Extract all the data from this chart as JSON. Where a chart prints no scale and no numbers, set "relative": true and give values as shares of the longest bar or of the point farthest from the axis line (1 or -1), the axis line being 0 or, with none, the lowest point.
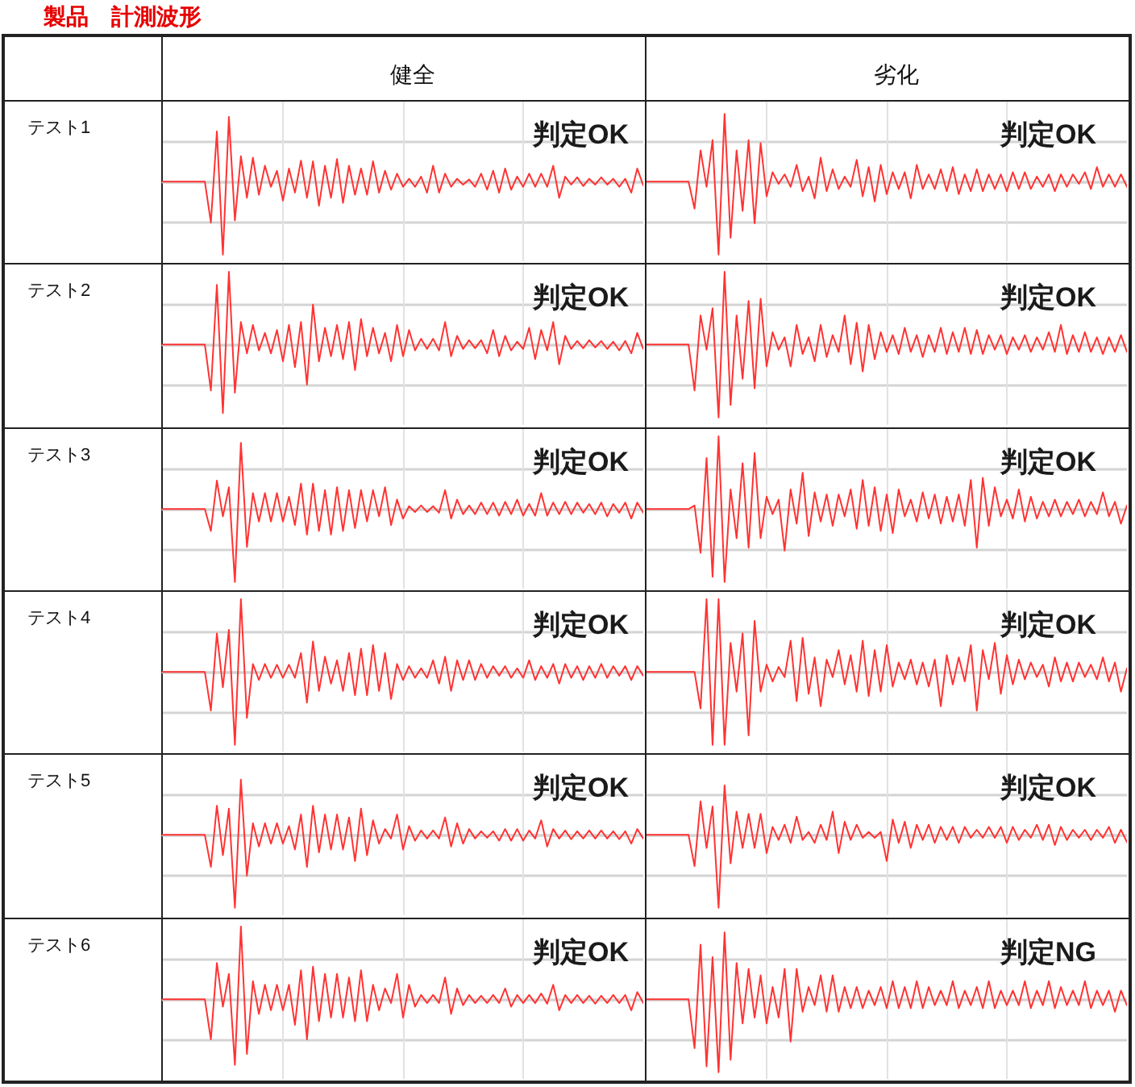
{
  "chart_data": [
    {
      "type": "other",
      "title": "製品　計測波形"
    },
    {
      "type": "line",
      "title": "健全",
      "ylabel": "テスト1",
      "relative": true,
      "grid": true,
      "color": "#ff3333",
      "annotations": [
        "判定OK"
      ],
      "categories": [
        null,
        null,
        null,
        null,
        null,
        null,
        null,
        null,
        null,
        null,
        null,
        null,
        null,
        null,
        null,
        null,
        null,
        null,
        null,
        null,
        null,
        null,
        null,
        null,
        null,
        null,
        null,
        null,
        null,
        null,
        null,
        null,
        null,
        null,
        null,
        null,
        null,
        null,
        null,
        null,
        null,
        null,
        null,
        null,
        null,
        null,
        null,
        null,
        null,
        null,
        null,
        null,
        null,
        null,
        null,
        null,
        null,
        null,
        null,
        null,
        null,
        null,
        null,
        null,
        null,
        null,
        null,
        null,
        null,
        null,
        null,
        null,
        null,
        null,
        null,
        null,
        null,
        null,
        null,
        null,
        null
      ],
      "values": [
        0,
        0,
        0,
        0,
        0,
        0,
        0,
        0,
        -0.56,
        0.69,
        -1,
        0.89,
        -0.53,
        0.35,
        -0.22,
        0.33,
        -0.18,
        0.22,
        -0.07,
        0.15,
        -0.26,
        0.18,
        -0.15,
        0.29,
        -0.22,
        0.28,
        -0.33,
        0.22,
        -0.22,
        0.31,
        -0.29,
        0.22,
        -0.18,
        0.18,
        -0.18,
        0.28,
        -0.15,
        0.15,
        -0.11,
        0.11,
        -0.07,
        0.04,
        -0.07,
        0.07,
        -0.15,
        0.22,
        -0.15,
        0.11,
        -0.07,
        0.04,
        -0.04,
        0.03,
        -0.07,
        0.11,
        -0.11,
        0.15,
        -0.15,
        0.18,
        -0.11,
        0.07,
        -0.07,
        0.11,
        -0.07,
        0.11,
        -0.07,
        0.22,
        -0.22,
        0.07,
        -0.04,
        0.06,
        -0.06,
        0.04,
        -0.04,
        0.06,
        -0.04,
        0.04,
        -0.07,
        0.04,
        -0.15,
        0.18,
        -0.05
      ]
    },
    {
      "type": "line",
      "title": "劣化",
      "relative": true,
      "grid": true,
      "color": "#ff3333",
      "annotations": [
        "判定OK"
      ],
      "categories": [
        null,
        null,
        null,
        null,
        null,
        null,
        null,
        null,
        null,
        null,
        null,
        null,
        null,
        null,
        null,
        null,
        null,
        null,
        null,
        null,
        null,
        null,
        null,
        null,
        null,
        null,
        null,
        null,
        null,
        null,
        null,
        null,
        null,
        null,
        null,
        null,
        null,
        null,
        null,
        null,
        null,
        null,
        null,
        null,
        null,
        null,
        null,
        null,
        null,
        null,
        null,
        null,
        null,
        null,
        null,
        null,
        null,
        null,
        null,
        null,
        null,
        null,
        null,
        null,
        null,
        null,
        null,
        null,
        null,
        null,
        null,
        null,
        null,
        null,
        null,
        null,
        null,
        null,
        null,
        null,
        null
      ],
      "values": [
        0,
        0,
        0,
        0,
        0,
        0,
        0,
        0,
        -0.37,
        0.43,
        -0.07,
        0.57,
        -1,
        0.93,
        -0.77,
        0.43,
        -0.4,
        0.57,
        -0.57,
        0.53,
        -0.2,
        0.13,
        -0.03,
        0.1,
        -0.07,
        0.23,
        -0.13,
        0.07,
        -0.23,
        0.33,
        -0.13,
        0.17,
        -0.1,
        0.07,
        -0.07,
        0.3,
        -0.2,
        0.2,
        -0.27,
        0.23,
        -0.17,
        0.13,
        -0.1,
        0.13,
        -0.23,
        0.23,
        -0.1,
        0.1,
        -0.1,
        0.17,
        -0.13,
        0.2,
        -0.17,
        0.1,
        -0.13,
        0.17,
        -0.13,
        0.1,
        -0.1,
        0.1,
        -0.13,
        0.13,
        -0.1,
        0.13,
        -0.1,
        0.07,
        -0.07,
        0.1,
        -0.13,
        0.1,
        -0.07,
        0.1,
        -0.03,
        0.13,
        -0.1,
        0.2,
        -0.07,
        0.1,
        -0.07,
        0.1,
        -0.07
      ]
    },
    {
      "type": "line",
      "ylabel": "テスト2",
      "relative": true,
      "grid": true,
      "color": "#ff3333",
      "annotations": [
        "判定OK"
      ],
      "categories": [
        null,
        null,
        null,
        null,
        null,
        null,
        null,
        null,
        null,
        null,
        null,
        null,
        null,
        null,
        null,
        null,
        null,
        null,
        null,
        null,
        null,
        null,
        null,
        null,
        null,
        null,
        null,
        null,
        null,
        null,
        null,
        null,
        null,
        null,
        null,
        null,
        null,
        null,
        null,
        null,
        null,
        null,
        null,
        null,
        null,
        null,
        null,
        null,
        null,
        null,
        null,
        null,
        null,
        null,
        null,
        null,
        null,
        null,
        null,
        null,
        null,
        null,
        null,
        null,
        null,
        null,
        null,
        null,
        null,
        null,
        null,
        null,
        null,
        null,
        null,
        null,
        null,
        null,
        null,
        null,
        null
      ],
      "values": [
        0,
        0,
        0,
        0,
        0,
        0,
        0,
        0,
        -0.63,
        0.82,
        -0.94,
        1,
        -0.66,
        0.31,
        -0.12,
        0.27,
        -0.08,
        0.16,
        -0.12,
        0.2,
        -0.23,
        0.27,
        -0.31,
        0.31,
        -0.55,
        0.55,
        -0.23,
        0.23,
        -0.16,
        0.27,
        -0.2,
        0.31,
        -0.35,
        0.35,
        -0.16,
        0.23,
        -0.12,
        0.16,
        -0.23,
        0.27,
        -0.16,
        0.2,
        -0.08,
        0.08,
        -0.06,
        0.08,
        -0.08,
        0.31,
        -0.16,
        0.12,
        -0.06,
        0.06,
        -0.05,
        0.06,
        -0.12,
        0.2,
        -0.16,
        0.12,
        -0.08,
        0.04,
        -0.06,
        0.23,
        -0.2,
        0.2,
        -0.08,
        0.31,
        -0.27,
        0.12,
        -0.06,
        0.05,
        -0.05,
        0.06,
        -0.04,
        0.05,
        -0.06,
        0.04,
        -0.08,
        0.05,
        -0.12,
        0.16,
        -0.06
      ]
    },
    {
      "type": "line",
      "relative": true,
      "grid": true,
      "color": "#ff3333",
      "annotations": [
        "判定OK"
      ],
      "categories": [
        null,
        null,
        null,
        null,
        null,
        null,
        null,
        null,
        null,
        null,
        null,
        null,
        null,
        null,
        null,
        null,
        null,
        null,
        null,
        null,
        null,
        null,
        null,
        null,
        null,
        null,
        null,
        null,
        null,
        null,
        null,
        null,
        null,
        null,
        null,
        null,
        null,
        null,
        null,
        null,
        null,
        null,
        null,
        null,
        null,
        null,
        null,
        null,
        null,
        null,
        null,
        null,
        null,
        null,
        null,
        null,
        null,
        null,
        null,
        null,
        null,
        null,
        null,
        null,
        null,
        null,
        null,
        null,
        null,
        null,
        null,
        null,
        null,
        null,
        null,
        null,
        null,
        null,
        null,
        null,
        null
      ],
      "values": [
        0,
        0,
        0,
        0,
        0,
        0,
        0,
        0,
        -0.63,
        0.4,
        -0.07,
        0.5,
        -1,
        1,
        -0.83,
        0.4,
        -0.47,
        0.6,
        -0.6,
        0.63,
        -0.3,
        0.17,
        -0.07,
        0.1,
        -0.3,
        0.27,
        -0.13,
        0.1,
        -0.23,
        0.27,
        -0.17,
        0.13,
        -0.1,
        0.4,
        -0.27,
        0.3,
        -0.37,
        0.27,
        -0.2,
        0.17,
        -0.1,
        0.13,
        -0.13,
        0.23,
        -0.1,
        0.13,
        -0.17,
        0.13,
        -0.1,
        0.23,
        -0.13,
        0.17,
        -0.1,
        0.23,
        -0.13,
        0.2,
        -0.13,
        0.13,
        -0.07,
        0.13,
        -0.13,
        0.1,
        -0.07,
        0.13,
        -0.1,
        0.1,
        -0.07,
        0.17,
        -0.1,
        0.27,
        -0.13,
        0.13,
        -0.1,
        0.17,
        -0.1,
        0.1,
        -0.13,
        0.1,
        -0.1,
        0.13,
        -0.1
      ]
    },
    {
      "type": "line",
      "ylabel": "テスト3",
      "relative": true,
      "grid": true,
      "color": "#ff3333",
      "annotations": [
        "判定OK"
      ],
      "categories": [
        null,
        null,
        null,
        null,
        null,
        null,
        null,
        null,
        null,
        null,
        null,
        null,
        null,
        null,
        null,
        null,
        null,
        null,
        null,
        null,
        null,
        null,
        null,
        null,
        null,
        null,
        null,
        null,
        null,
        null,
        null,
        null,
        null,
        null,
        null,
        null,
        null,
        null,
        null,
        null,
        null,
        null,
        null,
        null,
        null,
        null,
        null,
        null,
        null,
        null,
        null,
        null,
        null,
        null,
        null,
        null,
        null,
        null,
        null,
        null,
        null,
        null,
        null,
        null,
        null,
        null,
        null,
        null,
        null,
        null,
        null,
        null,
        null,
        null,
        null,
        null,
        null,
        null,
        null,
        null,
        null
      ],
      "values": [
        0,
        0,
        0,
        0,
        0,
        0,
        0,
        0,
        -0.3,
        0.39,
        -0.1,
        0.3,
        -1,
        0.91,
        -0.52,
        0.22,
        -0.17,
        0.22,
        -0.17,
        0.22,
        -0.17,
        0.17,
        -0.22,
        0.35,
        -0.35,
        0.35,
        -0.3,
        0.26,
        -0.35,
        0.3,
        -0.3,
        0.26,
        -0.26,
        0.26,
        -0.17,
        0.26,
        -0.1,
        0.3,
        -0.22,
        0.13,
        -0.13,
        0.04,
        -0.04,
        0.05,
        -0.04,
        0.04,
        -0.05,
        0.26,
        -0.13,
        0.13,
        -0.07,
        0.05,
        -0.07,
        0.09,
        -0.07,
        0.09,
        -0.09,
        0.1,
        -0.07,
        0.13,
        -0.09,
        0.07,
        -0.09,
        0.22,
        -0.09,
        0.09,
        -0.07,
        0.1,
        -0.07,
        0.09,
        -0.05,
        0.07,
        -0.07,
        0.09,
        -0.1,
        0.07,
        -0.05,
        0.09,
        -0.13,
        0.09,
        -0.05
      ]
    },
    {
      "type": "line",
      "relative": true,
      "grid": true,
      "color": "#ff3333",
      "annotations": [
        "判定OK"
      ],
      "categories": [
        null,
        null,
        null,
        null,
        null,
        null,
        null,
        null,
        null,
        null,
        null,
        null,
        null,
        null,
        null,
        null,
        null,
        null,
        null,
        null,
        null,
        null,
        null,
        null,
        null,
        null,
        null,
        null,
        null,
        null,
        null,
        null,
        null,
        null,
        null,
        null,
        null,
        null,
        null,
        null,
        null,
        null,
        null,
        null,
        null,
        null,
        null,
        null,
        null,
        null,
        null,
        null,
        null,
        null,
        null,
        null,
        null,
        null,
        null,
        null,
        null,
        null,
        null,
        null,
        null,
        null,
        null,
        null,
        null,
        null,
        null,
        null,
        null,
        null,
        null,
        null,
        null,
        null,
        null,
        null,
        null
      ],
      "values": [
        0,
        0,
        0,
        0,
        0,
        0,
        0,
        0,
        0.05,
        -0.6,
        0.7,
        -0.93,
        1,
        -1,
        0.27,
        -0.4,
        0.63,
        -0.53,
        0.77,
        -0.4,
        0.17,
        -0.07,
        0.13,
        -0.57,
        0.27,
        -0.2,
        0.5,
        -0.37,
        0.23,
        -0.17,
        0.2,
        -0.23,
        0.2,
        -0.1,
        0.27,
        -0.27,
        0.4,
        -0.23,
        0.3,
        -0.3,
        0.2,
        -0.33,
        0.27,
        -0.1,
        0.13,
        -0.17,
        0.23,
        -0.13,
        0.2,
        -0.2,
        0.17,
        -0.17,
        0.2,
        -0.23,
        0.4,
        -0.53,
        0.43,
        -0.23,
        0.3,
        -0.1,
        0.13,
        -0.13,
        0.27,
        -0.17,
        0.17,
        -0.13,
        0.1,
        -0.1,
        0.13,
        -0.1,
        0.1,
        -0.07,
        0.13,
        -0.1,
        0.1,
        -0.07,
        0.23,
        -0.1,
        0.1,
        -0.2,
        0.05
      ]
    },
    {
      "type": "line",
      "ylabel": "テスト4",
      "relative": true,
      "grid": true,
      "color": "#ff3333",
      "annotations": [
        "判定OK"
      ],
      "categories": [
        null,
        null,
        null,
        null,
        null,
        null,
        null,
        null,
        null,
        null,
        null,
        null,
        null,
        null,
        null,
        null,
        null,
        null,
        null,
        null,
        null,
        null,
        null,
        null,
        null,
        null,
        null,
        null,
        null,
        null,
        null,
        null,
        null,
        null,
        null,
        null,
        null,
        null,
        null,
        null,
        null,
        null,
        null,
        null,
        null,
        null,
        null,
        null,
        null,
        null,
        null,
        null,
        null,
        null,
        null,
        null,
        null,
        null,
        null,
        null,
        null,
        null,
        null,
        null,
        null,
        null,
        null,
        null,
        null,
        null,
        null,
        null,
        null,
        null,
        null,
        null,
        null,
        null,
        null,
        null,
        null
      ],
      "values": [
        0,
        0,
        0,
        0,
        0,
        0,
        0,
        0,
        -0.53,
        0.53,
        -0.21,
        0.58,
        -1,
        1,
        -0.63,
        0.11,
        -0.11,
        0.11,
        -0.08,
        0.1,
        -0.08,
        0.1,
        -0.08,
        0.26,
        -0.42,
        0.42,
        -0.26,
        0.21,
        -0.16,
        0.16,
        -0.26,
        0.26,
        -0.32,
        0.32,
        -0.32,
        0.37,
        -0.26,
        0.26,
        -0.37,
        0.11,
        -0.11,
        0.08,
        -0.08,
        0.05,
        -0.08,
        0.16,
        -0.16,
        0.21,
        -0.26,
        0.16,
        -0.11,
        0.16,
        -0.11,
        0.11,
        -0.08,
        0.08,
        -0.05,
        0.08,
        -0.08,
        0.05,
        -0.08,
        0.16,
        -0.11,
        0.08,
        -0.08,
        0.11,
        -0.16,
        0.11,
        -0.08,
        0.08,
        -0.11,
        0.08,
        -0.08,
        0.11,
        -0.08,
        0.08,
        -0.05,
        0.08,
        -0.11,
        0.08,
        -0.05
      ]
    },
    {
      "type": "line",
      "relative": true,
      "grid": true,
      "color": "#ff3333",
      "annotations": [
        "判定OK"
      ],
      "categories": [
        null,
        null,
        null,
        null,
        null,
        null,
        null,
        null,
        null,
        null,
        null,
        null,
        null,
        null,
        null,
        null,
        null,
        null,
        null,
        null,
        null,
        null,
        null,
        null,
        null,
        null,
        null,
        null,
        null,
        null,
        null,
        null,
        null,
        null,
        null,
        null,
        null,
        null,
        null,
        null,
        null,
        null,
        null,
        null,
        null,
        null,
        null,
        null,
        null,
        null,
        null,
        null,
        null,
        null,
        null,
        null,
        null,
        null,
        null,
        null,
        null,
        null,
        null,
        null,
        null,
        null,
        null,
        null,
        null,
        null,
        null,
        null,
        null,
        null,
        null,
        null,
        null,
        null,
        null,
        null,
        null
      ],
      "values": [
        0,
        0,
        0,
        0,
        0,
        0,
        0,
        0,
        0,
        -0.5,
        1,
        -1,
        1,
        -1,
        0.4,
        -0.27,
        0.53,
        -0.87,
        0.7,
        -0.27,
        0.1,
        -0.13,
        0.07,
        -0.07,
        0.43,
        -0.4,
        0.47,
        -0.3,
        0.2,
        -0.47,
        0.17,
        -0.07,
        0.3,
        -0.17,
        0.23,
        -0.27,
        0.43,
        -0.33,
        0.3,
        -0.27,
        0.37,
        -0.2,
        0.13,
        -0.1,
        0.17,
        -0.17,
        0.13,
        -0.2,
        0.17,
        -0.47,
        0.23,
        -0.17,
        0.2,
        -0.13,
        0.37,
        -0.53,
        0.3,
        -0.1,
        0.4,
        -0.3,
        0.23,
        -0.17,
        0.17,
        -0.1,
        0.13,
        -0.07,
        0.1,
        -0.2,
        0.2,
        -0.13,
        0.13,
        -0.13,
        0.13,
        -0.07,
        0.1,
        -0.1,
        0.2,
        -0.13,
        0.13,
        -0.27,
        0.05
      ]
    },
    {
      "type": "line",
      "ylabel": "テスト5",
      "relative": true,
      "grid": true,
      "color": "#ff3333",
      "annotations": [
        "判定OK"
      ],
      "categories": [
        null,
        null,
        null,
        null,
        null,
        null,
        null,
        null,
        null,
        null,
        null,
        null,
        null,
        null,
        null,
        null,
        null,
        null,
        null,
        null,
        null,
        null,
        null,
        null,
        null,
        null,
        null,
        null,
        null,
        null,
        null,
        null,
        null,
        null,
        null,
        null,
        null,
        null,
        null,
        null,
        null,
        null,
        null,
        null,
        null,
        null,
        null,
        null,
        null,
        null,
        null,
        null,
        null,
        null,
        null,
        null,
        null,
        null,
        null,
        null,
        null,
        null,
        null,
        null,
        null,
        null,
        null,
        null,
        null,
        null,
        null,
        null,
        null,
        null,
        null,
        null,
        null,
        null,
        null,
        null,
        null
      ],
      "values": [
        0,
        0,
        0,
        0,
        0,
        0,
        0,
        0,
        -0.44,
        0.4,
        -0.28,
        0.36,
        -1,
        0.76,
        -0.56,
        0.16,
        -0.16,
        0.16,
        -0.12,
        0.16,
        -0.12,
        0.12,
        -0.2,
        0.28,
        -0.44,
        0.4,
        -0.24,
        0.28,
        -0.2,
        0.28,
        -0.2,
        0.24,
        -0.36,
        0.36,
        -0.28,
        0.2,
        -0.12,
        0.08,
        -0.05,
        0.28,
        -0.2,
        0.12,
        -0.08,
        0.06,
        -0.05,
        0.06,
        -0.05,
        0.24,
        -0.16,
        0.16,
        -0.12,
        0.08,
        -0.05,
        0.05,
        -0.04,
        0.05,
        -0.08,
        0.08,
        -0.08,
        0.08,
        -0.08,
        0.06,
        -0.05,
        0.2,
        -0.16,
        0.08,
        -0.05,
        0.06,
        -0.06,
        0.05,
        -0.05,
        0.06,
        -0.05,
        0.06,
        -0.05,
        0.05,
        -0.06,
        0.05,
        -0.12,
        0.08,
        -0.05
      ]
    },
    {
      "type": "line",
      "relative": true,
      "grid": true,
      "color": "#ff3333",
      "annotations": [
        "判定OK"
      ],
      "categories": [
        null,
        null,
        null,
        null,
        null,
        null,
        null,
        null,
        null,
        null,
        null,
        null,
        null,
        null,
        null,
        null,
        null,
        null,
        null,
        null,
        null,
        null,
        null,
        null,
        null,
        null,
        null,
        null,
        null,
        null,
        null,
        null,
        null,
        null,
        null,
        null,
        null,
        null,
        null,
        null,
        null,
        null,
        null,
        null,
        null,
        null,
        null,
        null,
        null,
        null,
        null,
        null,
        null,
        null,
        null,
        null,
        null,
        null,
        null,
        null,
        null,
        null,
        null,
        null,
        null,
        null,
        null,
        null,
        null,
        null,
        null,
        null,
        null,
        null,
        null,
        null,
        null,
        null,
        null,
        null,
        null
      ],
      "values": [
        0,
        0,
        0,
        0,
        0,
        0,
        0,
        0,
        -0.43,
        0.46,
        -0.18,
        0.39,
        -1,
        0.68,
        -0.39,
        0.32,
        -0.18,
        0.29,
        -0.18,
        0.29,
        -0.25,
        0.11,
        -0.07,
        0.14,
        -0.11,
        0.25,
        -0.07,
        0.04,
        -0.11,
        0.14,
        -0.07,
        0.32,
        -0.25,
        0.18,
        -0.07,
        0.14,
        -0.04,
        0.04,
        -0.04,
        0.04,
        -0.36,
        0.21,
        -0.11,
        0.18,
        -0.18,
        0.14,
        -0.07,
        0.14,
        -0.11,
        0.11,
        -0.07,
        0.11,
        -0.11,
        0.11,
        -0.04,
        0.07,
        -0.04,
        0.11,
        -0.04,
        0.11,
        -0.11,
        0.11,
        -0.07,
        0.07,
        -0.04,
        0.14,
        -0.07,
        0.14,
        -0.14,
        0.11,
        -0.07,
        0.07,
        -0.04,
        0.07,
        -0.07,
        0.07,
        -0.04,
        0.11,
        -0.11,
        0.07,
        -0.1
      ]
    },
    {
      "type": "line",
      "ylabel": "テスト6",
      "relative": true,
      "grid": true,
      "color": "#ff3333",
      "annotations": [
        "判定OK"
      ],
      "categories": [
        null,
        null,
        null,
        null,
        null,
        null,
        null,
        null,
        null,
        null,
        null,
        null,
        null,
        null,
        null,
        null,
        null,
        null,
        null,
        null,
        null,
        null,
        null,
        null,
        null,
        null,
        null,
        null,
        null,
        null,
        null,
        null,
        null,
        null,
        null,
        null,
        null,
        null,
        null,
        null,
        null,
        null,
        null,
        null,
        null,
        null,
        null,
        null,
        null,
        null,
        null,
        null,
        null,
        null,
        null,
        null,
        null,
        null,
        null,
        null,
        null,
        null,
        null,
        null,
        null,
        null,
        null,
        null,
        null,
        null,
        null,
        null,
        null,
        null,
        null,
        null,
        null,
        null,
        null,
        null,
        null
      ],
      "values": [
        0,
        0,
        0,
        0,
        0,
        0,
        0,
        0,
        -0.55,
        0.5,
        -0.1,
        0.35,
        -0.9,
        1,
        -0.75,
        0.25,
        -0.2,
        0.2,
        -0.15,
        0.2,
        -0.15,
        0.2,
        -0.35,
        0.4,
        -0.55,
        0.45,
        -0.3,
        0.35,
        -0.25,
        0.35,
        -0.25,
        0.3,
        -0.3,
        0.4,
        -0.3,
        0.2,
        -0.15,
        0.15,
        -0.05,
        0.35,
        -0.25,
        0.2,
        -0.1,
        0.06,
        -0.05,
        0.06,
        -0.05,
        0.3,
        -0.2,
        0.15,
        -0.08,
        0.06,
        -0.05,
        0.05,
        -0.05,
        0.06,
        -0.05,
        0.15,
        -0.1,
        0.06,
        -0.05,
        0.06,
        -0.05,
        0.08,
        -0.06,
        0.2,
        -0.15,
        0.06,
        -0.05,
        0.06,
        -0.05,
        0.05,
        -0.06,
        0.05,
        -0.05,
        0.06,
        -0.05,
        0.06,
        -0.15,
        0.1,
        -0.05
      ]
    },
    {
      "type": "line",
      "relative": true,
      "grid": true,
      "color": "#ff3333",
      "annotations": [
        "判定NG"
      ],
      "categories": [
        null,
        null,
        null,
        null,
        null,
        null,
        null,
        null,
        null,
        null,
        null,
        null,
        null,
        null,
        null,
        null,
        null,
        null,
        null,
        null,
        null,
        null,
        null,
        null,
        null,
        null,
        null,
        null,
        null,
        null,
        null,
        null,
        null,
        null,
        null,
        null,
        null,
        null,
        null,
        null,
        null,
        null,
        null,
        null,
        null,
        null,
        null,
        null,
        null,
        null,
        null,
        null,
        null,
        null,
        null,
        null,
        null,
        null,
        null,
        null,
        null,
        null,
        null,
        null,
        null,
        null,
        null,
        null,
        null,
        null,
        null,
        null,
        null,
        null,
        null,
        null,
        null,
        null,
        null,
        null,
        null
      ],
      "values": [
        0,
        0,
        0,
        0,
        0,
        0,
        0,
        0,
        -0.67,
        0.75,
        -0.92,
        0.58,
        -1,
        0.92,
        -0.83,
        0.5,
        -0.33,
        0.42,
        -0.25,
        0.33,
        -0.33,
        0.17,
        -0.25,
        0.42,
        -0.58,
        0.42,
        -0.17,
        0.17,
        -0.08,
        0.33,
        -0.17,
        0.33,
        -0.17,
        0.17,
        -0.12,
        0.17,
        -0.12,
        0.12,
        -0.08,
        0.17,
        -0.12,
        0.25,
        -0.12,
        0.17,
        -0.12,
        0.25,
        -0.12,
        0.17,
        -0.08,
        0.12,
        -0.08,
        0.25,
        -0.12,
        0.12,
        -0.08,
        0.17,
        -0.12,
        0.25,
        -0.12,
        0.12,
        -0.08,
        0.12,
        -0.08,
        0.25,
        -0.12,
        0.12,
        -0.08,
        0.25,
        -0.12,
        0.17,
        -0.08,
        0.12,
        -0.08,
        0.25,
        -0.12,
        0.12,
        -0.08,
        0.12,
        -0.17,
        0.12,
        -0.08
      ]
    }
  ]
}
